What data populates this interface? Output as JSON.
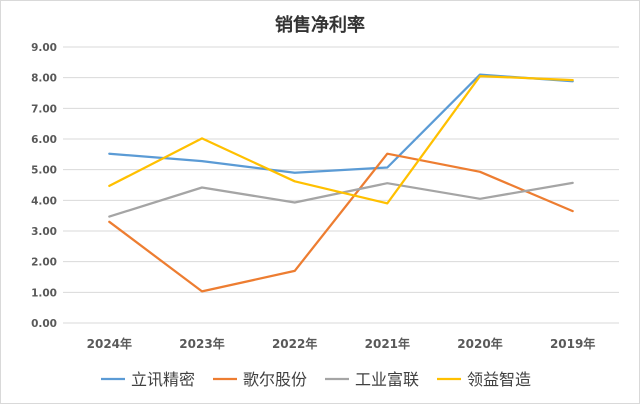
{
  "chart_data": {
    "type": "line",
    "title": "销售净利率",
    "categories": [
      "2024年",
      "2023年",
      "2022年",
      "2021年",
      "2020年",
      "2019年"
    ],
    "ylim": [
      0,
      9
    ],
    "y_ticks": [
      "0.00",
      "1.00",
      "2.00",
      "3.00",
      "4.00",
      "5.00",
      "6.00",
      "7.00",
      "8.00",
      "9.00"
    ],
    "grid": true,
    "legend_position": "bottom",
    "series": [
      {
        "name": "立讯精密",
        "color": "#5B9BD5",
        "values": [
          5.52,
          5.28,
          4.9,
          5.07,
          8.1,
          7.88
        ]
      },
      {
        "name": "歌尔股份",
        "color": "#ED7D31",
        "values": [
          3.3,
          1.03,
          1.7,
          5.52,
          4.93,
          3.65
        ]
      },
      {
        "name": "工业富联",
        "color": "#A5A5A5",
        "values": [
          3.47,
          4.42,
          3.93,
          4.56,
          4.05,
          4.57
        ]
      },
      {
        "name": "领益智造",
        "color": "#FFC000",
        "values": [
          4.47,
          6.02,
          4.62,
          3.9,
          8.05,
          7.92
        ]
      }
    ]
  }
}
